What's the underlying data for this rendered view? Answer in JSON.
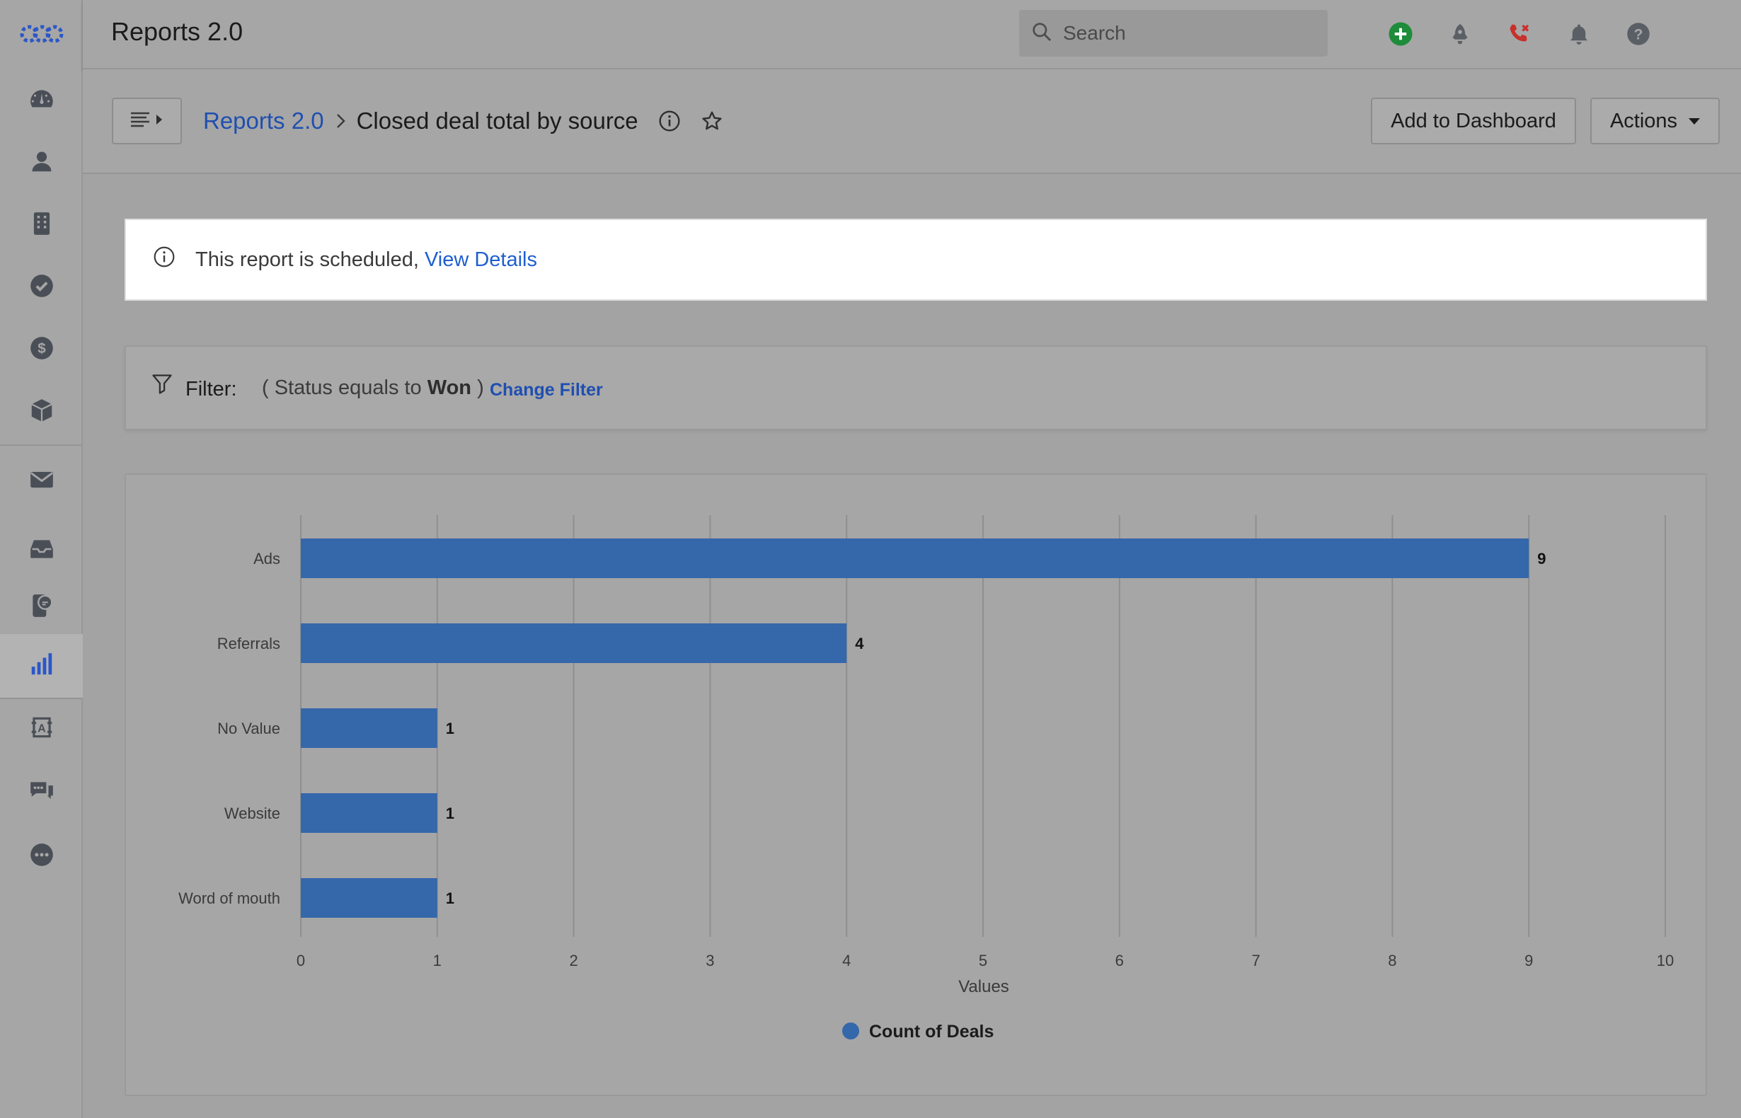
{
  "app": {
    "title": "Reports 2.0"
  },
  "search": {
    "placeholder": "Search"
  },
  "sidebar": {
    "items": [
      {
        "icon": "dashboard-gauge-icon"
      },
      {
        "icon": "contacts-person-icon"
      },
      {
        "icon": "accounts-building-icon"
      },
      {
        "icon": "tasks-check-icon"
      },
      {
        "icon": "deals-dollar-icon"
      },
      {
        "icon": "products-box-icon"
      },
      {
        "icon": "email-envelope-icon"
      },
      {
        "icon": "inbox-tray-icon"
      },
      {
        "icon": "phone-chat-icon"
      },
      {
        "icon": "reports-bar-chart-icon",
        "active": true
      },
      {
        "icon": "automation-icon"
      },
      {
        "icon": "chat-bubbles-icon"
      },
      {
        "icon": "more-dots-icon"
      }
    ]
  },
  "breadcrumb": {
    "parent": "Reports 2.0",
    "current": "Closed deal total by source"
  },
  "actions": {
    "add_to_dashboard": "Add to Dashboard",
    "actions_label": "Actions"
  },
  "banner": {
    "text": "This report is scheduled,",
    "link": "View Details"
  },
  "filter": {
    "label": "Filter:",
    "cond_prefix": "( Status equals to",
    "cond_value": "Won",
    "cond_suffix": ")",
    "change_label": "Change Filter"
  },
  "colors": {
    "bar": "#3567ab",
    "link": "#1f4fb0",
    "add_green": "#1e8c3a",
    "phone_red": "#c7302b"
  },
  "chart_data": {
    "type": "bar",
    "orientation": "horizontal",
    "categories": [
      "Ads",
      "Referrals",
      "No Value",
      "Website",
      "Word of mouth"
    ],
    "series": [
      {
        "name": "Count of Deals",
        "values": [
          9,
          4,
          1,
          1,
          1
        ]
      }
    ],
    "xlabel": "Values",
    "xlim": [
      0,
      10
    ],
    "xticks": [
      "0",
      "1",
      "2",
      "3",
      "4",
      "5",
      "6",
      "7",
      "8",
      "9",
      "10"
    ],
    "grid": true,
    "legend_position": "bottom",
    "data_labels": true
  }
}
